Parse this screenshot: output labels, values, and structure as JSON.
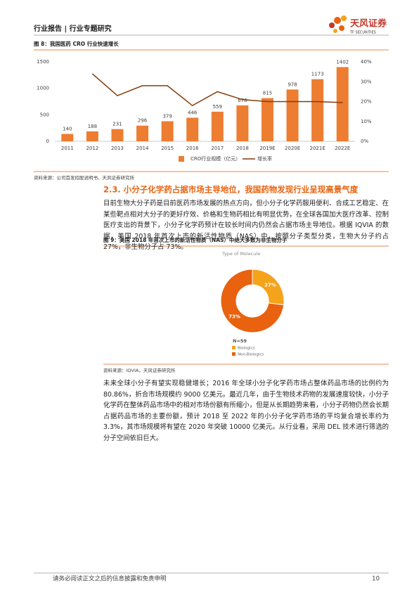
{
  "header": {
    "title": "行业报告 | 行业专题研究",
    "logo": "天风证券",
    "logo_en": "TF SECURITIES"
  },
  "chart_data": [
    {
      "type": "bar",
      "title": "图 8：我国医药 CRO 行业快速增长",
      "categories": [
        "2011",
        "2012",
        "2013",
        "2014",
        "2015",
        "2016",
        "2017",
        "2018",
        "2019E",
        "2020E",
        "2021E",
        "2022E"
      ],
      "series": [
        {
          "name": "CRO行业规模（亿元）",
          "color": "#ed7d31",
          "values": [
            140,
            188,
            231,
            296,
            379,
            446,
            559,
            678,
            815,
            978,
            1173,
            1402
          ]
        },
        {
          "name": "增长率",
          "color": "#843c0c",
          "type": "line",
          "axis": "y2",
          "values": [
            null,
            34,
            23,
            28,
            28,
            18,
            25,
            21,
            20,
            20,
            20,
            19.5
          ]
        }
      ],
      "ylim": [
        0,
        1500
      ],
      "yticks": [
        0,
        500,
        1000,
        1500
      ],
      "y2lim": [
        0,
        40
      ],
      "y2ticks": [
        {
          "value": 0,
          "label": "0%"
        },
        {
          "value": 10,
          "label": "10%"
        },
        {
          "value": 20,
          "label": "20%"
        },
        {
          "value": 30,
          "label": "30%"
        },
        {
          "value": 40,
          "label": "40%"
        }
      ],
      "grid": false,
      "legend": "bottom",
      "source": "资料来源：公司首发招股说明书、天风证券研究所"
    },
    {
      "type": "pie",
      "title": "图 9：美国 2018 年首次上市的新活性物质（NAS）中绝大多数为非生物分子",
      "subtitle": "Type of Molecule",
      "categories": [
        "Biologics",
        "Non-Biologics"
      ],
      "values": [
        27,
        73
      ],
      "value_labels": [
        "27%",
        "73%"
      ],
      "colors": [
        "#f5a31a",
        "#e8620f"
      ],
      "annotation": "N=59",
      "legend": "bottom-left",
      "source": "资料来源：IQVIA，天风证券研究所"
    }
  ],
  "section": {
    "heading": "2.3. 小分子化学药占据市场主导地位，我国药物发现行业呈现高景气度",
    "paragraph_1": "目前生物大分子药是目前医药市场发展的热点方向，但小分子化学药服用便利、合成工艺稳定、在某些靶点相对大分子的更好疗效、价格和生物药相比有明显优势，在全球各国加大医疗改革、控制医疗支出的背景下，小分子化学药预计在较长时间内仍然会占据市场主导地位。根据 IQVIA 的数据，美国 2018 年首次上市的新活性物质（NAS）中，按照分子类型分类，生物大分子约占 27%，非生物分子占 73%。",
    "paragraph_2": "未来全球小分子有望实现稳健增长；2016 年全球小分子化学药市场占整体药品市场的比例约为 80.86%，折合市场规模约 9000 亿美元。最近几年，由于生物技术药物的发展速度较快，小分子化学药在整体药品市场中的相对市场份额有所缩小，但是从长期趋势来看，小分子药物仍然会长期占据药品市场的主要份额，预计 2018 至 2022 年的小分子化学药市场的平均复合增长率约为 3.3%，其市场规模将有望在 2020 年突破 10000 亿美元。从行业看，采用 DEL 技术进行筛选的分子空间依旧巨大。"
  },
  "footer": {
    "disclaimer": "请务必阅读正文之后的信息披露和免责申明",
    "page": "10"
  }
}
